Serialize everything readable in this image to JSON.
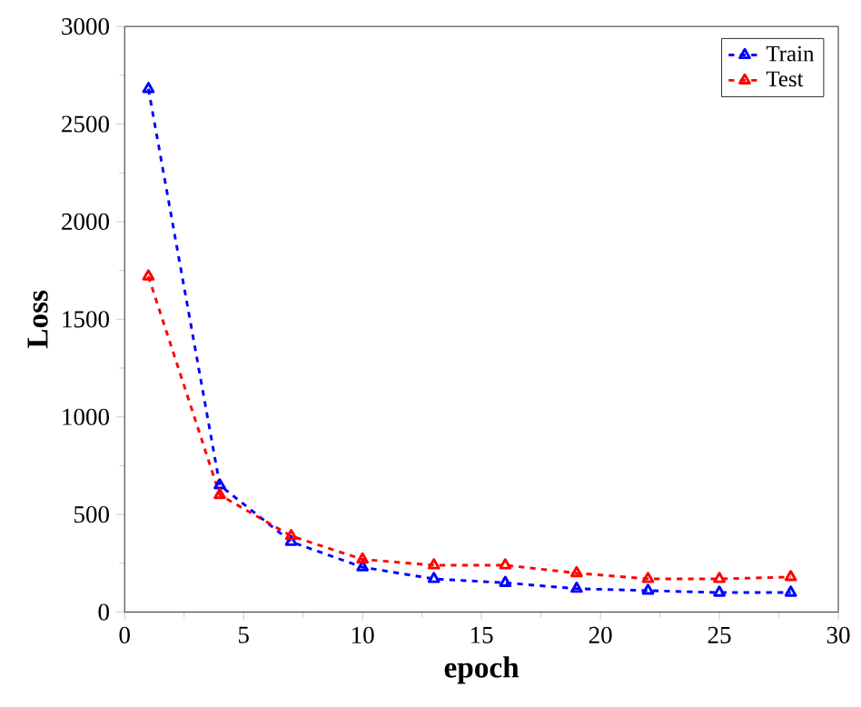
{
  "chart_data": {
    "type": "line",
    "xlabel": "epoch",
    "ylabel": "Loss",
    "x": [
      1,
      4,
      7,
      10,
      13,
      16,
      19,
      22,
      25,
      28
    ],
    "series": [
      {
        "name": "Train",
        "color": "#0000ff",
        "values": [
          2680,
          650,
          360,
          230,
          170,
          150,
          120,
          110,
          100,
          100
        ]
      },
      {
        "name": "Test",
        "color": "#ff0000",
        "values": [
          1720,
          600,
          390,
          270,
          240,
          240,
          200,
          170,
          170,
          180
        ]
      }
    ],
    "xlim": [
      0,
      30
    ],
    "xticks": [
      0,
      5,
      10,
      15,
      20,
      25,
      30
    ],
    "ylim": [
      0,
      3000
    ],
    "yticks": [
      0,
      500,
      1000,
      1500,
      2000,
      2500,
      3000
    ],
    "legend": "top right",
    "marker": "triangle",
    "line_style": "dashed",
    "grid": false
  }
}
